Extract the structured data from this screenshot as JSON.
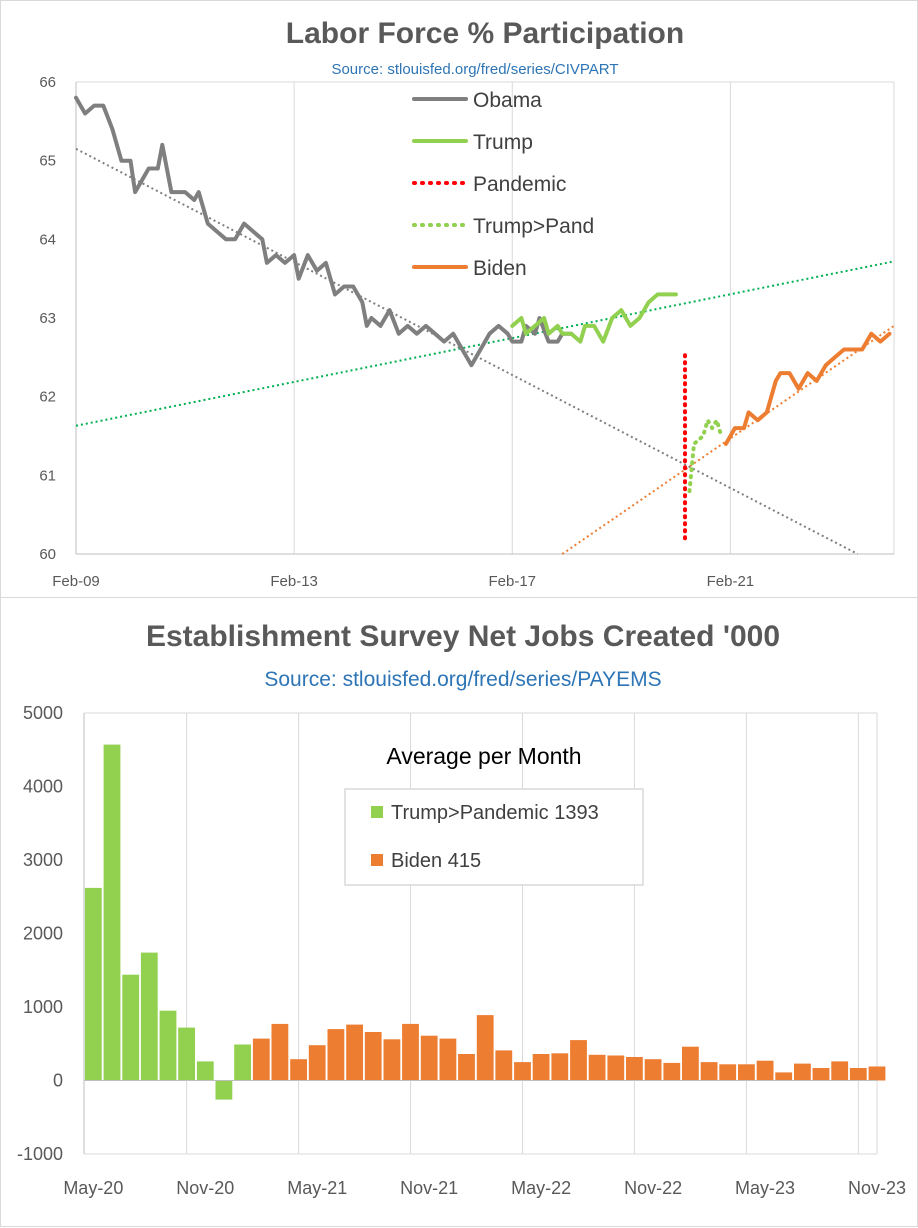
{
  "chart_data": [
    {
      "type": "line",
      "title": "Labor Force % Participation",
      "subtitle": "Source: stlouisfed.org/fred/series/CIVPART",
      "ylim": [
        60,
        66
      ],
      "yticks": [
        "60",
        "61",
        "62",
        "63",
        "64",
        "65",
        "66"
      ],
      "xticks": [
        "Feb-09",
        "Feb-13",
        "Feb-17",
        "Feb-21"
      ],
      "xlim": [
        "2009-02",
        "2024-02"
      ],
      "grid": true,
      "legend_position": "top-center",
      "colors": {
        "obama": "#7f7f7f",
        "trump": "#92d050",
        "pandemic": "#ff0000",
        "trump_pand": "#92d050",
        "biden": "#ed7d31",
        "trend_green": "#00b050"
      },
      "series": [
        {
          "name": "Obama",
          "style": "solid",
          "color": "#7f7f7f",
          "points": [
            [
              "2009-02",
              65.8
            ],
            [
              "2009-04",
              65.6
            ],
            [
              "2009-06",
              65.7
            ],
            [
              "2009-08",
              65.7
            ],
            [
              "2009-10",
              65.4
            ],
            [
              "2009-12",
              65.0
            ],
            [
              "2010-02",
              65.0
            ],
            [
              "2010-03",
              64.6
            ],
            [
              "2010-06",
              64.9
            ],
            [
              "2010-08",
              64.9
            ],
            [
              "2010-09",
              65.2
            ],
            [
              "2010-11",
              64.6
            ],
            [
              "2011-02",
              64.6
            ],
            [
              "2011-04",
              64.5
            ],
            [
              "2011-05",
              64.6
            ],
            [
              "2011-07",
              64.2
            ],
            [
              "2011-09",
              64.1
            ],
            [
              "2011-11",
              64.0
            ],
            [
              "2012-01",
              64.0
            ],
            [
              "2012-03",
              64.2
            ],
            [
              "2012-05",
              64.1
            ],
            [
              "2012-07",
              64.0
            ],
            [
              "2012-08",
              63.7
            ],
            [
              "2012-10",
              63.8
            ],
            [
              "2012-12",
              63.7
            ],
            [
              "2013-02",
              63.8
            ],
            [
              "2013-03",
              63.5
            ],
            [
              "2013-05",
              63.8
            ],
            [
              "2013-07",
              63.6
            ],
            [
              "2013-09",
              63.7
            ],
            [
              "2013-11",
              63.3
            ],
            [
              "2014-01",
              63.4
            ],
            [
              "2014-03",
              63.4
            ],
            [
              "2014-05",
              63.2
            ],
            [
              "2014-06",
              62.9
            ],
            [
              "2014-07",
              63.0
            ],
            [
              "2014-09",
              62.9
            ],
            [
              "2014-11",
              63.1
            ],
            [
              "2015-01",
              62.8
            ],
            [
              "2015-03",
              62.9
            ],
            [
              "2015-05",
              62.8
            ],
            [
              "2015-07",
              62.9
            ],
            [
              "2015-09",
              62.8
            ],
            [
              "2015-11",
              62.7
            ],
            [
              "2016-01",
              62.8
            ],
            [
              "2016-03",
              62.6
            ],
            [
              "2016-05",
              62.4
            ],
            [
              "2016-07",
              62.6
            ],
            [
              "2016-09",
              62.8
            ],
            [
              "2016-11",
              62.9
            ],
            [
              "2017-01",
              62.8
            ],
            [
              "2017-02",
              62.7
            ],
            [
              "2017-04",
              62.7
            ],
            [
              "2017-05",
              62.9
            ],
            [
              "2017-07",
              62.8
            ],
            [
              "2017-08",
              63.0
            ],
            [
              "2017-10",
              62.7
            ],
            [
              "2017-12",
              62.7
            ],
            [
              "2018-01",
              62.8
            ],
            [
              "2018-03",
              62.8
            ]
          ]
        },
        {
          "name": "Trump",
          "style": "solid",
          "color": "#92d050",
          "points": [
            [
              "2017-02",
              62.9
            ],
            [
              "2017-04",
              63.0
            ],
            [
              "2017-05",
              62.8
            ],
            [
              "2017-07",
              62.9
            ],
            [
              "2017-09",
              63.0
            ],
            [
              "2017-10",
              62.8
            ],
            [
              "2017-12",
              62.9
            ],
            [
              "2018-01",
              62.8
            ],
            [
              "2018-03",
              62.8
            ],
            [
              "2018-05",
              62.7
            ],
            [
              "2018-06",
              62.9
            ],
            [
              "2018-08",
              62.9
            ],
            [
              "2018-10",
              62.7
            ],
            [
              "2018-12",
              63.0
            ],
            [
              "2019-02",
              63.1
            ],
            [
              "2019-04",
              62.9
            ],
            [
              "2019-06",
              63.0
            ],
            [
              "2019-08",
              63.2
            ],
            [
              "2019-10",
              63.3
            ],
            [
              "2020-02",
              63.3
            ]
          ]
        },
        {
          "name": "Pandemic",
          "style": "dotted",
          "color": "#ff0000",
          "points": [
            [
              "2020-04",
              60.2
            ],
            [
              "2020-04",
              62.6
            ]
          ]
        },
        {
          "name": "Trump>Pand",
          "style": "dotted",
          "color": "#92d050",
          "points": [
            [
              "2020-05",
              60.8
            ],
            [
              "2020-06",
              61.4
            ],
            [
              "2020-08",
              61.5
            ],
            [
              "2020-09",
              61.7
            ],
            [
              "2020-10",
              61.6
            ],
            [
              "2020-11",
              61.7
            ],
            [
              "2020-12",
              61.5
            ]
          ]
        },
        {
          "name": "Biden",
          "style": "solid",
          "color": "#ed7d31",
          "points": [
            [
              "2021-01",
              61.4
            ],
            [
              "2021-03",
              61.6
            ],
            [
              "2021-05",
              61.6
            ],
            [
              "2021-06",
              61.8
            ],
            [
              "2021-08",
              61.7
            ],
            [
              "2021-10",
              61.8
            ],
            [
              "2021-12",
              62.2
            ],
            [
              "2022-01",
              62.3
            ],
            [
              "2022-03",
              62.3
            ],
            [
              "2022-05",
              62.1
            ],
            [
              "2022-07",
              62.3
            ],
            [
              "2022-09",
              62.2
            ],
            [
              "2022-11",
              62.4
            ],
            [
              "2023-01",
              62.5
            ],
            [
              "2023-03",
              62.6
            ],
            [
              "2023-05",
              62.6
            ],
            [
              "2023-07",
              62.6
            ],
            [
              "2023-09",
              62.8
            ],
            [
              "2023-11",
              62.7
            ],
            [
              "2024-01",
              62.8
            ]
          ]
        }
      ],
      "trendlines": [
        {
          "color": "#7f7f7f",
          "points": [
            [
              "2009-02",
              65.15
            ],
            [
              "2023-06",
              60.0
            ]
          ]
        },
        {
          "color": "#00b050",
          "points": [
            [
              "2009-02",
              61.63
            ],
            [
              "2024-02",
              63.72
            ]
          ]
        },
        {
          "color": "#ed7d31",
          "points": [
            [
              "2018-01",
              60.0
            ],
            [
              "2024-02",
              62.9
            ]
          ]
        }
      ]
    },
    {
      "type": "bar",
      "title": "Establishment Survey Net Jobs Created '000",
      "subtitle": "Source: stlouisfed.org/fred/series/PAYEMS",
      "ylim": [
        -1000,
        5000
      ],
      "yticks": [
        "-1000",
        "0",
        "1000",
        "2000",
        "3000",
        "4000",
        "5000"
      ],
      "xticks": [
        "May-20",
        "Nov-20",
        "May-21",
        "Nov-21",
        "May-22",
        "Nov-22",
        "May-23",
        "Nov-23"
      ],
      "grid": true,
      "legend_title": "Average per Month",
      "legend_position": "top-center",
      "series": [
        {
          "name": "Trump>Pandemic 1393",
          "color": "#92d050",
          "values": [
            2620,
            4570,
            1440,
            1740,
            950,
            720,
            260,
            -260,
            490
          ]
        },
        {
          "name": "Biden 415",
          "color": "#ed7d31",
          "values": [
            570,
            770,
            290,
            480,
            700,
            760,
            660,
            560,
            770,
            610,
            570,
            360,
            890,
            410,
            250,
            360,
            370,
            550,
            350,
            340,
            320,
            290,
            240,
            460,
            250,
            220,
            220,
            270,
            110,
            230,
            170,
            260,
            170,
            190
          ]
        }
      ]
    }
  ]
}
